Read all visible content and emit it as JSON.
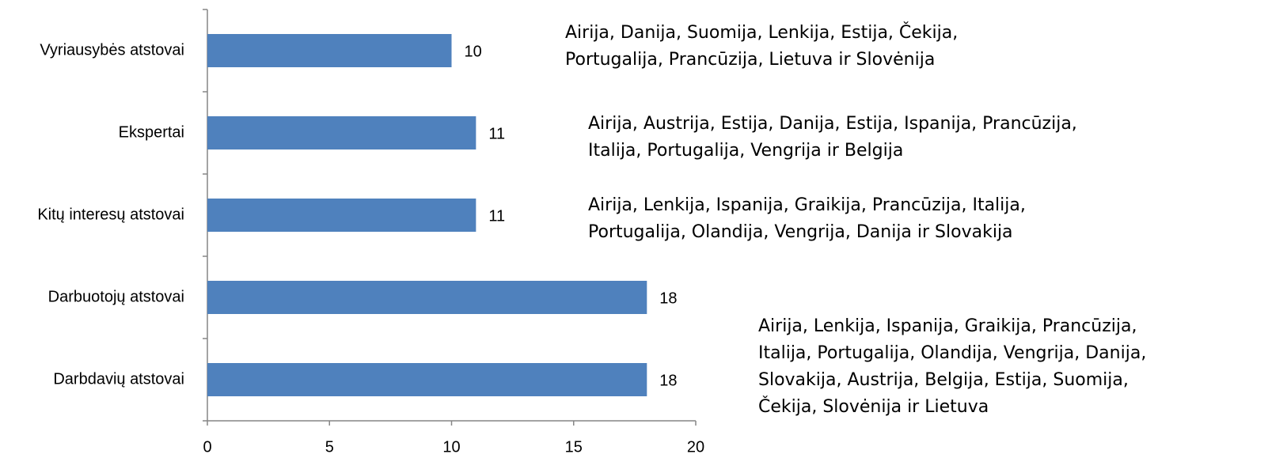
{
  "chart_data": {
    "type": "bar",
    "orientation": "horizontal",
    "categories": [
      "Vyriausybės atstovai",
      "Ekspertai",
      "Kitų interesų atstovai",
      "Darbuotojų atstovai",
      "Darbdavių atstovai"
    ],
    "values": [
      10,
      11,
      11,
      18,
      18
    ],
    "color": "#4f81bd",
    "xlim": [
      0,
      20
    ],
    "xticks": [
      0,
      5,
      10,
      15,
      20
    ],
    "grid": false,
    "annotations": [
      [
        "Airija, Danija, Suomija, Lenkija, Estija, Čekija,",
        "Portugalija, Prancūzija, Lietuva ir Slovėnija"
      ],
      [
        "Airija, Austrija, Estija, Danija, Estija, Ispanija, Prancūzija,",
        "Italija, Portugalija, Vengrija ir Belgija"
      ],
      [
        "Airija, Lenkija, Ispanija, Graikija, Prancūzija, Italija,",
        "Portugalija, Olandija, Vengrija, Danija ir Slovakija"
      ],
      [
        "Airija, Lenkija, Ispanija, Graikija, Prancūzija,",
        "Italija, Portugalija, Olandija, Vengrija, Danija,",
        "Slovakija, Austrija, Belgija, Estija, Suomija,",
        "Čekija, Slovėnija ir Lietuva"
      ]
    ]
  }
}
